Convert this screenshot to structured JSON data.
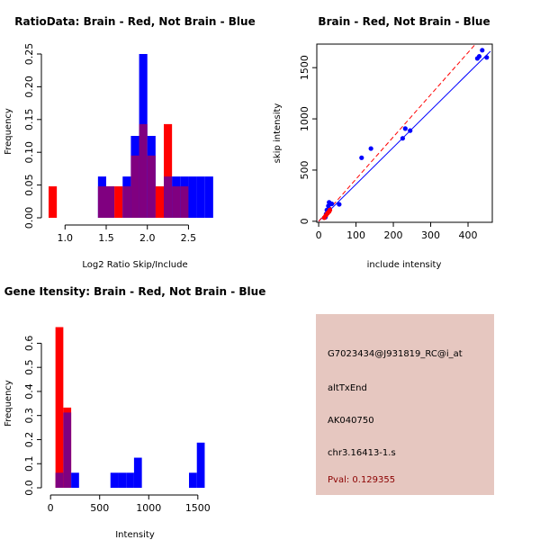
{
  "colors": {
    "brain": "#ff0000",
    "not_brain": "#0000ff",
    "overlap": "#800080",
    "panel_bg": "#e6c7c0",
    "pval": "#8b0000"
  },
  "chart_data": [
    {
      "id": "ratio",
      "type": "bar",
      "subtype": "overlaid-histogram",
      "title": "RatioData: Brain - Red, Not Brain - Blue",
      "xlabel": "Log2 Ratio Skip/Include",
      "ylabel": "Frequency",
      "xlim": [
        0.8,
        2.9
      ],
      "ylim": [
        0,
        0.25
      ],
      "xticks": [
        1.0,
        1.5,
        2.0,
        2.5
      ],
      "xtick_labels": [
        "1.0",
        "1.5",
        "2.0",
        "2.5"
      ],
      "yticks": [
        0,
        0.05,
        0.1,
        0.15,
        0.2,
        0.25
      ],
      "ytick_labels": [
        "0.00",
        "0.05",
        "0.10",
        "0.15",
        "0.20",
        "0.25"
      ],
      "bin_start": 0.8,
      "bin_width": 0.1,
      "series": [
        {
          "name": "Brain",
          "color": "red",
          "values": [
            0.048,
            0,
            0,
            0,
            0,
            0,
            0.048,
            0.048,
            0.048,
            0.048,
            0.095,
            0.143,
            0.095,
            0.048,
            0.143,
            0.048,
            0.048,
            0,
            0,
            0,
            0
          ]
        },
        {
          "name": "Not Brain",
          "color": "blue",
          "values": [
            0,
            0,
            0,
            0,
            0,
            0,
            0.063,
            0.048,
            0,
            0.063,
            0.125,
            0.25,
            0.125,
            0,
            0.063,
            0.063,
            0.063,
            0.063,
            0.063,
            0.063,
            0
          ]
        }
      ]
    },
    {
      "id": "scatter",
      "type": "scatter",
      "title": "Brain - Red, Not Brain - Blue",
      "xlabel": "include intensity",
      "ylabel": "skip intensity",
      "xlim": [
        -5,
        465
      ],
      "ylim": [
        -10,
        1730
      ],
      "xticks": [
        0,
        100,
        200,
        300,
        400
      ],
      "xtick_labels": [
        "0",
        "100",
        "200",
        "300",
        "400"
      ],
      "yticks": [
        0,
        500,
        1000,
        1500
      ],
      "ytick_labels": [
        "0",
        "500",
        "1000",
        "1500"
      ],
      "series": [
        {
          "name": "Not Brain",
          "color": "blue",
          "points": [
            [
              18,
              40
            ],
            [
              20,
              70
            ],
            [
              22,
              110
            ],
            [
              26,
              150
            ],
            [
              28,
              185
            ],
            [
              35,
              170
            ],
            [
              55,
              165
            ],
            [
              115,
              620
            ],
            [
              140,
              710
            ],
            [
              225,
              810
            ],
            [
              232,
              905
            ],
            [
              245,
              885
            ],
            [
              425,
              1590
            ],
            [
              430,
              1610
            ],
            [
              438,
              1670
            ],
            [
              450,
              1600
            ]
          ]
        },
        {
          "name": "Brain",
          "color": "red",
          "points": [
            [
              15,
              35
            ],
            [
              20,
              60
            ],
            [
              24,
              80
            ],
            [
              28,
              95
            ],
            [
              30,
              110
            ]
          ]
        }
      ],
      "fit_lines": [
        {
          "name": "Not Brain",
          "color": "blue",
          "dashed": false,
          "from": [
            0,
            0
          ],
          "to": [
            460,
            1660
          ]
        },
        {
          "name": "Brain",
          "color": "red",
          "dashed": true,
          "from": [
            0,
            0
          ],
          "to": [
            420,
            1730
          ]
        }
      ]
    },
    {
      "id": "gene",
      "type": "bar",
      "subtype": "overlaid-histogram",
      "title": "Gene Itensity: Brain - Red, Not Brain - Blue",
      "xlabel": "Intensity",
      "ylabel": "Frequency",
      "xlim": [
        -20,
        1740
      ],
      "ylim": [
        0,
        0.68
      ],
      "xticks": [
        0,
        500,
        1000,
        1500
      ],
      "xtick_labels": [
        "0",
        "500",
        "1000",
        "1500"
      ],
      "yticks": [
        0,
        0.1,
        0.2,
        0.3,
        0.4,
        0.5,
        0.6
      ],
      "ytick_labels": [
        "0.0",
        "0.1",
        "0.2",
        "0.3",
        "0.4",
        "0.5",
        "0.6"
      ],
      "bin_start": 50,
      "bin_width": 80,
      "series": [
        {
          "name": "Brain",
          "color": "red",
          "values": [
            0.667,
            0.333,
            0,
            0,
            0,
            0,
            0,
            0,
            0,
            0,
            0,
            0,
            0,
            0,
            0,
            0,
            0,
            0,
            0,
            0
          ]
        },
        {
          "name": "Not Brain",
          "color": "blue",
          "values": [
            0.0625,
            0.3125,
            0.0625,
            0,
            0,
            0,
            0,
            0.0625,
            0.0625,
            0.0625,
            0.125,
            0,
            0,
            0,
            0,
            0,
            0,
            0.0625,
            0.1875,
            0
          ]
        }
      ]
    }
  ],
  "info_panel": {
    "probe_id": "G7023434@J931819_RC@i_at",
    "event_type": "altTxEnd",
    "accession": "AK040750",
    "location": "chr3.16413-1.s",
    "pval": "Pval: 0.129355"
  }
}
